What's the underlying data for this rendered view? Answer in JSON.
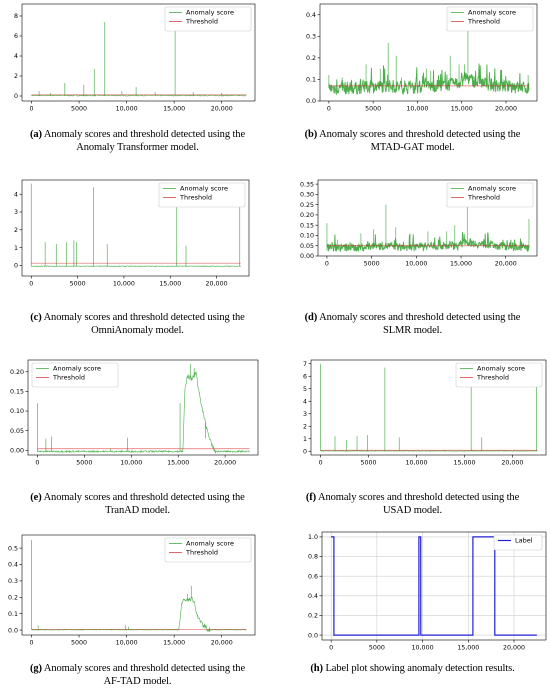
{
  "panels": [
    {
      "id": "a",
      "caption_tag": "(a)",
      "caption_line1": "Anomaly scores and threshold detected using the",
      "caption_line2": "Anomaly Transformer model.",
      "chart_data": {
        "type": "line",
        "xlim": [
          -1000,
          23500
        ],
        "ylim": [
          -0.5,
          9.2
        ],
        "xticks": [
          0,
          5000,
          10000,
          15000,
          20000
        ],
        "xtick_labels": [
          "0",
          "5000",
          "10,000",
          "15,000",
          "20,000"
        ],
        "yticks": [
          0,
          2,
          4,
          6,
          8
        ],
        "ytick_labels": [
          "0",
          "2",
          "4",
          "6",
          "8"
        ],
        "legend": "top-right",
        "base": 0.05,
        "noise": 0.05,
        "spikes": [
          [
            800,
            0.5
          ],
          [
            2000,
            0.3
          ],
          [
            3500,
            1.3
          ],
          [
            5500,
            1.1
          ],
          [
            6600,
            2.7
          ],
          [
            7700,
            7.4
          ],
          [
            9500,
            0.5
          ],
          [
            11000,
            0.9
          ],
          [
            13000,
            0.4
          ],
          [
            15100,
            8.9
          ],
          [
            17000,
            0.4
          ],
          [
            20000,
            0.3
          ]
        ],
        "threshold": 0.12,
        "series": [
          {
            "name": "Anomaly score",
            "color": "#2ca02c",
            "role": "score"
          },
          {
            "name": "Threshold",
            "color": "#d62728",
            "role": "threshold"
          }
        ]
      }
    },
    {
      "id": "b",
      "caption_tag": "(b)",
      "caption_line1": "Anomaly scores and threshold detected using the",
      "caption_line2": "MTAD-GAT model.",
      "chart_data": {
        "type": "line",
        "xlim": [
          -1000,
          23500
        ],
        "ylim": [
          0.0,
          0.45
        ],
        "xticks": [
          0,
          5000,
          10000,
          15000,
          20000
        ],
        "xtick_labels": [
          "0",
          "5000",
          "10,000",
          "15,000",
          "20,000"
        ],
        "yticks": [
          0.0,
          0.1,
          0.2,
          0.3,
          0.4
        ],
        "ytick_labels": [
          "0.0",
          "0.1",
          "0.2",
          "0.3",
          "0.4"
        ],
        "legend": "top-right",
        "base_segments": [
          [
            0,
            0.06
          ],
          [
            3000,
            0.06
          ],
          [
            6500,
            0.07
          ],
          [
            9000,
            0.06
          ],
          [
            12000,
            0.07
          ],
          [
            14500,
            0.08
          ],
          [
            15500,
            0.11
          ],
          [
            16500,
            0.09
          ],
          [
            19000,
            0.07
          ],
          [
            22500,
            0.06
          ]
        ],
        "noise": 0.03,
        "spikes": [
          [
            0,
            0.12
          ],
          [
            1500,
            0.11
          ],
          [
            4200,
            0.17
          ],
          [
            5800,
            0.15
          ],
          [
            6700,
            0.27
          ],
          [
            7600,
            0.21
          ],
          [
            8200,
            0.11
          ],
          [
            11000,
            0.15
          ],
          [
            11500,
            0.14
          ],
          [
            13700,
            0.21
          ],
          [
            14700,
            0.17
          ],
          [
            15300,
            0.17
          ],
          [
            15700,
            0.42
          ],
          [
            22500,
            0.12
          ]
        ],
        "threshold": 0.07,
        "series": [
          {
            "name": "Anomaly score",
            "color": "#2ca02c",
            "role": "score"
          },
          {
            "name": "Threshold",
            "color": "#d62728",
            "role": "threshold"
          }
        ]
      }
    },
    {
      "id": "c",
      "caption_tag": "(c)",
      "caption_line1": "Anomaly scores and threshold detected using the",
      "caption_line2": "OmniAnomaly model.",
      "chart_data": {
        "type": "line",
        "xlim": [
          -1000,
          23500
        ],
        "ylim": [
          -0.6,
          4.8
        ],
        "xticks": [
          0,
          5000,
          10000,
          15000,
          20000
        ],
        "xtick_labels": [
          "0",
          "5000",
          "10,000",
          "15,000",
          "20,000"
        ],
        "yticks": [
          0,
          1,
          2,
          3,
          4
        ],
        "ytick_labels": [
          "0",
          "1",
          "2",
          "3",
          "4"
        ],
        "legend": "top-right",
        "base": -0.05,
        "noise": 0.02,
        "spikes": [
          [
            0,
            4.6
          ],
          [
            1500,
            1.3
          ],
          [
            2700,
            1.2
          ],
          [
            3800,
            1.3
          ],
          [
            4600,
            1.4
          ],
          [
            4900,
            1.3
          ],
          [
            6700,
            4.4
          ],
          [
            8200,
            1.2
          ],
          [
            15700,
            4.5
          ],
          [
            16700,
            1.1
          ],
          [
            22500,
            4.1
          ]
        ],
        "threshold": 0.12,
        "series": [
          {
            "name": "Anomaly score",
            "color": "#2ca02c",
            "role": "score"
          },
          {
            "name": "Threshold",
            "color": "#d62728",
            "role": "threshold"
          }
        ]
      }
    },
    {
      "id": "d",
      "caption_tag": "(d)",
      "caption_line1": "Anomaly scores and threshold detected using the",
      "caption_line2": "SLMR model.",
      "chart_data": {
        "type": "line",
        "xlim": [
          -1000,
          23500
        ],
        "ylim": [
          0.0,
          0.37
        ],
        "xticks": [
          0,
          5000,
          10000,
          15000,
          20000
        ],
        "xtick_labels": [
          "0",
          "5000",
          "10,000",
          "15,000",
          "20,000"
        ],
        "yticks": [
          0.0,
          0.05,
          0.1,
          0.15,
          0.2,
          0.25,
          0.3,
          0.35
        ],
        "ytick_labels": [
          "0.00",
          "0.05",
          "0.10",
          "0.15",
          "0.20",
          "0.25",
          "0.30",
          "0.35"
        ],
        "legend": "top-right",
        "base_segments": [
          [
            0,
            0.04
          ],
          [
            3000,
            0.04
          ],
          [
            6500,
            0.05
          ],
          [
            9000,
            0.04
          ],
          [
            12000,
            0.05
          ],
          [
            14800,
            0.05
          ],
          [
            15500,
            0.07
          ],
          [
            16500,
            0.06
          ],
          [
            19000,
            0.05
          ],
          [
            22500,
            0.04
          ]
        ],
        "noise": 0.02,
        "spikes": [
          [
            0,
            0.16
          ],
          [
            1200,
            0.08
          ],
          [
            3800,
            0.11
          ],
          [
            5200,
            0.13
          ],
          [
            6600,
            0.25
          ],
          [
            7700,
            0.14
          ],
          [
            9300,
            0.11
          ],
          [
            11300,
            0.12
          ],
          [
            13400,
            0.12
          ],
          [
            14300,
            0.15
          ],
          [
            15700,
            0.35
          ],
          [
            22600,
            0.18
          ]
        ],
        "threshold": 0.05,
        "series": [
          {
            "name": "Anomaly score",
            "color": "#2ca02c",
            "role": "score"
          },
          {
            "name": "Threshold",
            "color": "#d62728",
            "role": "threshold"
          }
        ]
      }
    },
    {
      "id": "e",
      "caption_tag": "(e)",
      "caption_line1": "Anomaly scores and threshold detected using the",
      "caption_line2": "TranAD model.",
      "chart_data": {
        "type": "line",
        "xlim": [
          -1000,
          23500
        ],
        "ylim": [
          -0.012,
          0.23
        ],
        "xticks": [
          0,
          5000,
          10000,
          15000,
          20000
        ],
        "xtick_labels": [
          "0",
          "5000",
          "10,000",
          "15,000",
          "20,000"
        ],
        "yticks": [
          0.0,
          0.05,
          0.1,
          0.15,
          0.2
        ],
        "ytick_labels": [
          "0.00",
          "0.05",
          "0.10",
          "0.15",
          "0.20"
        ],
        "legend": "top-left",
        "base": -0.003,
        "noise": 0.002,
        "spikes": [
          [
            0,
            0.12
          ],
          [
            900,
            0.03
          ],
          [
            1500,
            0.035
          ],
          [
            7800,
            0.005
          ],
          [
            9600,
            0.032
          ],
          [
            15200,
            0.12
          ],
          [
            17900,
            0.03
          ]
        ],
        "bump": [
          [
            15500,
            -0.003
          ],
          [
            15700,
            0.15
          ],
          [
            16000,
            0.19
          ],
          [
            16500,
            0.18
          ],
          [
            16900,
            0.2
          ],
          [
            17200,
            0.15
          ],
          [
            17600,
            0.1
          ],
          [
            18100,
            0.05
          ],
          [
            18600,
            0.01
          ],
          [
            19000,
            -0.003
          ]
        ],
        "bump_spikes": [
          [
            16300,
            0.22
          ],
          [
            16700,
            0.21
          ]
        ],
        "threshold": 0.004,
        "series": [
          {
            "name": "Anomaly score",
            "color": "#2ca02c",
            "role": "score"
          },
          {
            "name": "Threshold",
            "color": "#d62728",
            "role": "threshold"
          }
        ]
      }
    },
    {
      "id": "f",
      "caption_tag": "(f)",
      "caption_line1": "Anomaly scores and threshold detected using the",
      "caption_line2": "USAD model.",
      "chart_data": {
        "type": "line",
        "xlim": [
          -1000,
          23500
        ],
        "ylim": [
          -0.3,
          7.3
        ],
        "xticks": [
          0,
          5000,
          10000,
          15000,
          20000
        ],
        "xtick_labels": [
          "0",
          "5000",
          "10,000",
          "15,000",
          "20,000"
        ],
        "yticks": [
          0,
          1,
          2,
          3,
          4,
          5,
          6,
          7
        ],
        "ytick_labels": [
          "0",
          "1",
          "2",
          "3",
          "4",
          "5",
          "6",
          "7"
        ],
        "legend": "top-right",
        "base": 0.02,
        "noise": 0.02,
        "spikes": [
          [
            0,
            7.0
          ],
          [
            1500,
            1.2
          ],
          [
            2700,
            0.9
          ],
          [
            3800,
            1.2
          ],
          [
            4900,
            1.3
          ],
          [
            6700,
            6.7
          ],
          [
            8200,
            1.1
          ],
          [
            15700,
            6.0
          ],
          [
            16800,
            1.1
          ],
          [
            22500,
            6.4
          ]
        ],
        "threshold": 0.08,
        "series": [
          {
            "name": "Anomaly score",
            "color": "#2ca02c",
            "role": "score"
          },
          {
            "name": "Threshold",
            "color": "#d62728",
            "role": "threshold"
          }
        ]
      }
    },
    {
      "id": "g",
      "caption_tag": "(g)",
      "caption_line1": "Anomaly scores and threshold detected using the",
      "caption_line2": "AF-TAD model.",
      "chart_data": {
        "type": "line",
        "xlim": [
          -1000,
          23500
        ],
        "ylim": [
          -0.03,
          0.58
        ],
        "xticks": [
          0,
          5000,
          10000,
          15000,
          20000
        ],
        "xtick_labels": [
          "0",
          "5000",
          "10,000",
          "15,000",
          "20,000"
        ],
        "yticks": [
          0.0,
          0.1,
          0.2,
          0.3,
          0.4,
          0.5
        ],
        "ytick_labels": [
          "0.0",
          "0.1",
          "0.2",
          "0.3",
          "0.4",
          "0.5"
        ],
        "legend": "top-right",
        "base": 0.002,
        "noise": 0.002,
        "spikes": [
          [
            0,
            0.55
          ],
          [
            700,
            0.03
          ],
          [
            9900,
            0.03
          ],
          [
            10200,
            0.02
          ]
        ],
        "bump": [
          [
            15500,
            0.002
          ],
          [
            15800,
            0.17
          ],
          [
            16200,
            0.19
          ],
          [
            16500,
            0.18
          ],
          [
            16900,
            0.2
          ],
          [
            17200,
            0.14
          ],
          [
            17500,
            0.08
          ],
          [
            17900,
            0.04
          ],
          [
            18400,
            0.01
          ],
          [
            18800,
            0.002
          ]
        ],
        "bump_spikes": [
          [
            16400,
            0.22
          ],
          [
            16800,
            0.27
          ]
        ],
        "threshold": 0.004,
        "series": [
          {
            "name": "Anomaly score",
            "color": "#2ca02c",
            "role": "score"
          },
          {
            "name": "Threshold",
            "color": "#d62728",
            "role": "threshold"
          }
        ]
      }
    },
    {
      "id": "h",
      "caption_tag": "(h)",
      "caption_line1": "Label plot showing anomaly detection results.",
      "caption_line2": "",
      "chart_data": {
        "type": "line",
        "xlim": [
          -1000,
          23500
        ],
        "ylim": [
          -0.05,
          1.05
        ],
        "xticks": [
          0,
          5000,
          10000,
          15000,
          20000
        ],
        "xtick_labels": [
          "0",
          "5000",
          "10,000",
          "15,000",
          "20,000"
        ],
        "yticks": [
          0.0,
          0.2,
          0.4,
          0.6,
          0.8,
          1.0
        ],
        "ytick_labels": [
          "0.0",
          "0.2",
          "0.4",
          "0.6",
          "0.8",
          "1.0"
        ],
        "grid": true,
        "legend": "top-right",
        "x": [
          0,
          300,
          301,
          9600,
          9601,
          9800,
          9801,
          15500,
          15501,
          17900,
          17901,
          22500
        ],
        "values": [
          1,
          1,
          0,
          0,
          1,
          1,
          0,
          0,
          1,
          1,
          0,
          0
        ],
        "series": [
          {
            "name": "Label",
            "color": "#1f1fd6",
            "role": "label"
          }
        ]
      }
    }
  ]
}
